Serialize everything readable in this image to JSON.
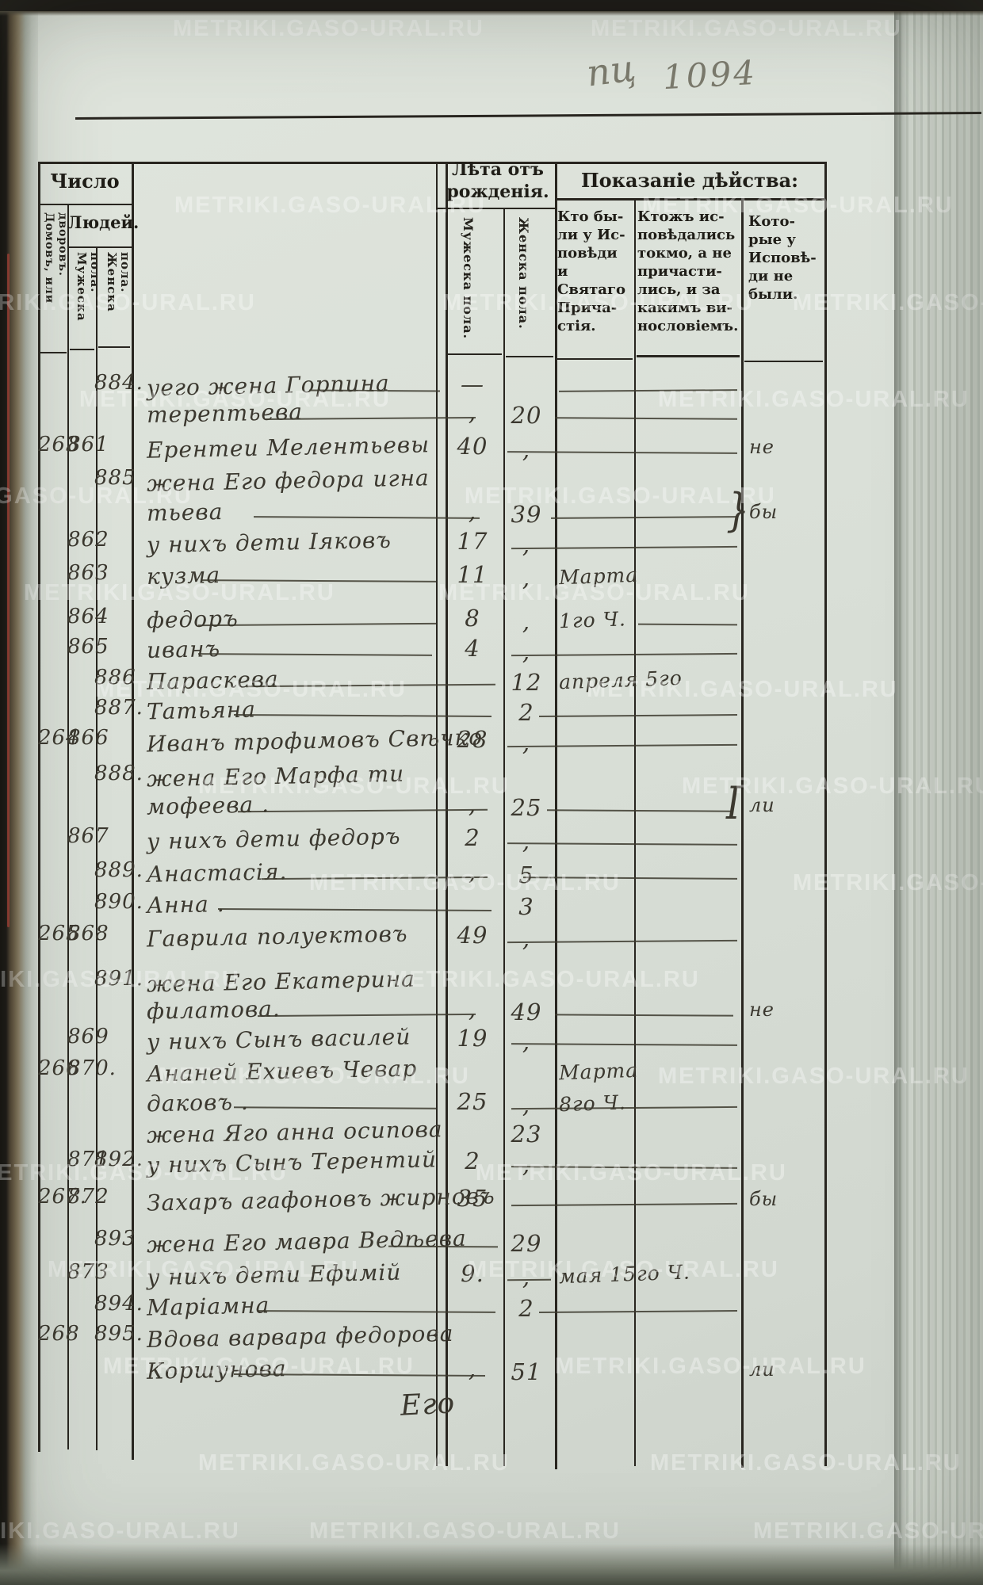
{
  "page": {
    "watermark": "METRIKI.GASO-URAL.RU",
    "pencil_left": "пц",
    "pencil_right": "1094",
    "catchword": "Его"
  },
  "header": {
    "group_left": {
      "title": "Число",
      "sub": "Людей.",
      "cols": [
        "Домовъ, или дворовъ.",
        "Мужеска пола.",
        "Женска пола."
      ]
    },
    "group_age": {
      "title": "Лѣта отъ\nрожденія.",
      "cols": [
        "Мужеска пола.",
        "Женска пола."
      ]
    },
    "group_act": {
      "title": "Показаніе дѣйства:",
      "cols": [
        "Кто бы-\nли у Ис-\nповѣди и\nСвятаго\nПрича-\nстія.",
        "Ктожъ ис-\nповѣдались\nтокмо, а не\nпричасти-\nлись, и за\nкакимъ ви-\nнословіемъ.",
        "Кото-\nрые у\nИсповѣ-\nди не\nбыли."
      ]
    }
  },
  "rows": [
    {
      "n3": "884.",
      "text": "уего жена Горпина",
      "ma": "—"
    },
    {
      "text": "терептьева",
      "ma": ",",
      "fa": "20"
    },
    {
      "n1": "263",
      "n2": "861",
      "text": "Ерентеи Мелентьевы",
      "ma": "40",
      "fa": ",",
      "note3": "не"
    },
    {
      "n3": "885",
      "text": "жена Его федора игна"
    },
    {
      "text": "тьева",
      "ma": ",",
      "fa": "39",
      "note3": "бы",
      "brace": "}"
    },
    {
      "n2": "862",
      "text": "у нихъ дети Іяковъ",
      "ma": "17",
      "fa": ","
    },
    {
      "n2": "863",
      "text": "кузма",
      "ma": "11",
      "fa": ",",
      "note1": "Марта"
    },
    {
      "n2": "864",
      "text": "федоръ",
      "ma": "8",
      "fa": ",",
      "note1": "1го Ч."
    },
    {
      "n2": "865",
      "text": "иванъ",
      "ma": "4",
      "fa": ","
    },
    {
      "n3": "886",
      "text": "Параскева",
      "fa": "12",
      "note1": "апреля 5го"
    },
    {
      "n3": "887.",
      "text": "Татьяна",
      "fa": "2"
    },
    {
      "n1": "264",
      "n2": "866",
      "text": "Иванъ трофимовъ Свѣчко",
      "ma": "28",
      "fa": ","
    },
    {
      "n3": "888.",
      "text": "жена Его Марфа ти"
    },
    {
      "text": "мофеева .",
      "ma": ",",
      "fa": "25",
      "note3": "ли",
      "brace": "I"
    },
    {
      "n2": "867",
      "text": "у нихъ дети федоръ",
      "ma": "2",
      "fa": ","
    },
    {
      "n3": "889.",
      "text": "Анастасія.",
      "ma": ",",
      "fa": "5"
    },
    {
      "n3": "890.",
      "text": "Анна .",
      "fa": "3"
    },
    {
      "n1": "265",
      "n2": "868",
      "text": "Гаврила полуектовъ",
      "ma": "49",
      "fa": ","
    },
    {
      "n3": "891.",
      "text": "жена Его Екатерина"
    },
    {
      "text": "филатова.",
      "ma": ",",
      "fa": "49",
      "note3": "не"
    },
    {
      "n2": "869",
      "text": "у нихъ Сынъ василей",
      "ma": "19",
      "fa": ","
    },
    {
      "n1": "266",
      "n2": "870.",
      "text": "Ананей Ехиевъ Чевар",
      "note1": "Марта"
    },
    {
      "text": "даковъ .",
      "ma": "25",
      "fa": ",",
      "note1": "8го Ч."
    },
    {
      "text": "жена Яго анна осипова",
      "fa": "23"
    },
    {
      "n2": "871",
      "n3": "892.",
      "text": "у нихъ Сынъ Терентий",
      "ma": "2",
      "fa": ","
    },
    {
      "n1": "267.",
      "n2": "872",
      "text": "Захаръ агафоновъ жирновъ",
      "ma": "35",
      "note3": "бы"
    },
    {
      "n3": "893",
      "text": "жена Его мавра Ведѣева",
      "fa": "29"
    },
    {
      "n2": "873",
      "text": "у нихъ дети Ефимій",
      "ma": "9.",
      "fa": ",",
      "note1": "мая 15го Ч."
    },
    {
      "n3": "894.",
      "text": "Маріамна",
      "fa": "2"
    },
    {
      "n1": "268",
      "n3": "895.",
      "text": "Вдова варвара федорова"
    },
    {
      "text": "Коршунова",
      "ma": ",",
      "fa": "51",
      "note3": "ли"
    }
  ]
}
